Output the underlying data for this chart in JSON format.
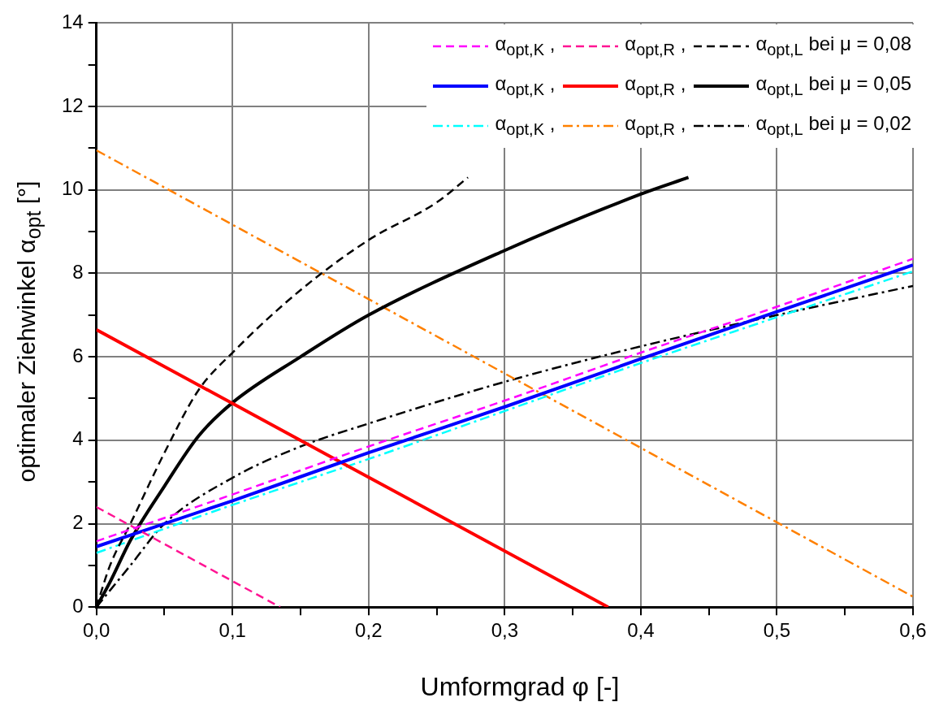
{
  "chart_data": {
    "type": "line",
    "xlabel": "Umformgrad φ [-]",
    "ylabel": "optimaler Ziehwinkel α$_{opt}$ [°]",
    "xlim": [
      0,
      0.6
    ],
    "ylim": [
      0,
      14
    ],
    "xticks": [
      {
        "value": 0,
        "label": "0,0"
      },
      {
        "value": 0.05,
        "label": null
      },
      {
        "value": 0.1,
        "label": "0,1"
      },
      {
        "value": 0.15,
        "label": null
      },
      {
        "value": 0.2,
        "label": "0,2"
      },
      {
        "value": 0.25,
        "label": null
      },
      {
        "value": 0.3,
        "label": "0,3"
      },
      {
        "value": 0.35,
        "label": null
      },
      {
        "value": 0.4,
        "label": "0,4"
      },
      {
        "value": 0.45,
        "label": null
      },
      {
        "value": 0.5,
        "label": "0,5"
      },
      {
        "value": 0.55,
        "label": null
      },
      {
        "value": 0.6,
        "label": "0,6"
      }
    ],
    "yticks": [
      0,
      {
        "value": 1,
        "label": null
      },
      2,
      {
        "value": 3,
        "label": null
      },
      4,
      {
        "value": 5,
        "label": null
      },
      6,
      {
        "value": 7,
        "label": null
      },
      8,
      {
        "value": 9,
        "label": null
      },
      10,
      {
        "value": 11,
        "label": null
      },
      12,
      {
        "value": 13,
        "label": null
      },
      14
    ],
    "grid": true,
    "legend": "top right",
    "marker": "none",
    "series": [
      {
        "name": "α$_{opt,K}$ ,",
        "color": "#ff00ff",
        "line_style": "dashed",
        "x": [
          0,
          0.1,
          0.2,
          0.3,
          0.4,
          0.5,
          0.6
        ],
        "values": [
          1.58,
          2.7,
          3.85,
          4.95,
          6.1,
          7.2,
          8.35
        ]
      },
      {
        "name": "α$_{opt,R}$ ,",
        "color": "#ff1493",
        "line_style": "dashed",
        "x": [
          0,
          0.135
        ],
        "values": [
          2.4,
          0
        ]
      },
      {
        "name": "α$_{opt,L}$ bei μ = 0,08",
        "color": "#000000",
        "line_style": "dashed",
        "x": [
          0,
          0.01,
          0.025,
          0.05,
          0.075,
          0.1,
          0.15,
          0.2,
          0.25,
          0.273
        ],
        "values": [
          0,
          1.0,
          2.0,
          3.7,
          5.2,
          6.1,
          7.6,
          8.8,
          9.7,
          10.3
        ]
      },
      {
        "name": "α$_{opt,K}$ ,",
        "color": "#0000ff",
        "line_style": "solid",
        "x": [
          0,
          0.1,
          0.2,
          0.3,
          0.4,
          0.5,
          0.6
        ],
        "values": [
          1.45,
          2.55,
          3.7,
          4.8,
          5.95,
          7.08,
          8.2
        ]
      },
      {
        "name": "α$_{opt,R}$ ,",
        "color": "#ff0000",
        "line_style": "solid",
        "x": [
          0,
          0.376
        ],
        "values": [
          6.65,
          0
        ]
      },
      {
        "name": "α$_{opt,L}$ bei μ = 0,05",
        "color": "#000000",
        "line_style": "solid",
        "x": [
          0,
          0.01,
          0.025,
          0.05,
          0.075,
          0.1,
          0.15,
          0.2,
          0.3,
          0.4,
          0.435
        ],
        "values": [
          0,
          0.6,
          1.6,
          2.9,
          4.1,
          4.9,
          6.0,
          7.0,
          8.55,
          9.9,
          10.3
        ]
      },
      {
        "name": "α$_{opt,K}$ ,",
        "color": "#00ffff",
        "line_style": "dashdot",
        "x": [
          0,
          0.1,
          0.2,
          0.3,
          0.4,
          0.5,
          0.6
        ],
        "values": [
          1.3,
          2.45,
          3.55,
          4.7,
          5.85,
          6.95,
          8.05
        ]
      },
      {
        "name": "α$_{opt,R}$ ,",
        "color": "#ff8000",
        "line_style": "dashdot",
        "x": [
          0,
          0.6
        ],
        "values": [
          10.95,
          0.25
        ]
      },
      {
        "name": "α$_{opt,L}$ bei μ = 0,02",
        "color": "#000000",
        "line_style": "dashdot",
        "x": [
          0,
          0.01,
          0.025,
          0.05,
          0.1,
          0.15,
          0.2,
          0.3,
          0.4,
          0.5,
          0.6
        ],
        "values": [
          0,
          0.4,
          1.0,
          2.0,
          3.1,
          3.85,
          4.4,
          5.4,
          6.25,
          7.0,
          7.7
        ]
      }
    ]
  }
}
